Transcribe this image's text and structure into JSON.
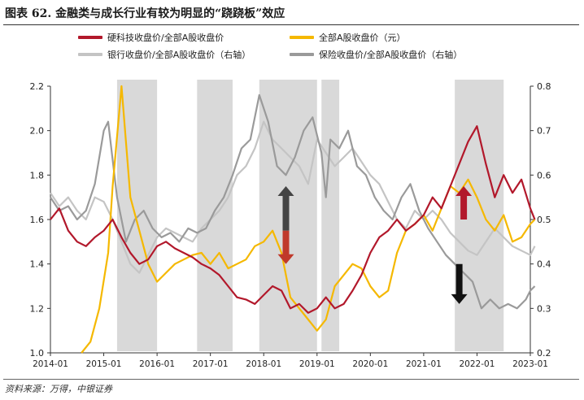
{
  "title": "图表 62. 金融类与成长行业有较为明显的“跷跷板”效应",
  "source": "资料来源：万得，中银证券",
  "chart_data": {
    "type": "line",
    "x_ticks": [
      "2014-01",
      "2015-01",
      "2016-01",
      "2017-01",
      "2018-01",
      "2019-01",
      "2020-01",
      "2021-01",
      "2022-01",
      "2023-01"
    ],
    "y_left": {
      "min": 1.0,
      "max": 2.2,
      "ticks": [
        "1.0",
        "1.2",
        "1.4",
        "1.6",
        "1.8",
        "2.0",
        "2.2"
      ]
    },
    "y_right": {
      "min": 0.2,
      "max": 0.8,
      "ticks": [
        "0.2",
        "0.3",
        "0.4",
        "0.5",
        "0.6",
        "0.7",
        "0.8"
      ]
    },
    "shaded_periods": [
      [
        "2015-04",
        "2016-01"
      ],
      [
        "2016-10",
        "2017-06"
      ],
      [
        "2017-12",
        "2019-01"
      ],
      [
        "2019-02",
        "2019-06"
      ],
      [
        "2021-08",
        "2022-07"
      ]
    ],
    "series": [
      {
        "name": "硬科技收盘价/全部A股收盘价",
        "color": "#b2182b",
        "axis": "left",
        "points": [
          [
            "2014-01",
            1.6
          ],
          [
            "2014-03",
            1.65
          ],
          [
            "2014-05",
            1.55
          ],
          [
            "2014-07",
            1.5
          ],
          [
            "2014-09",
            1.48
          ],
          [
            "2014-11",
            1.52
          ],
          [
            "2015-01",
            1.55
          ],
          [
            "2015-03",
            1.6
          ],
          [
            "2015-05",
            1.52
          ],
          [
            "2015-07",
            1.45
          ],
          [
            "2015-09",
            1.4
          ],
          [
            "2015-11",
            1.42
          ],
          [
            "2016-01",
            1.48
          ],
          [
            "2016-03",
            1.5
          ],
          [
            "2016-05",
            1.47
          ],
          [
            "2016-07",
            1.45
          ],
          [
            "2016-09",
            1.43
          ],
          [
            "2016-11",
            1.4
          ],
          [
            "2017-01",
            1.38
          ],
          [
            "2017-03",
            1.35
          ],
          [
            "2017-05",
            1.3
          ],
          [
            "2017-07",
            1.25
          ],
          [
            "2017-09",
            1.24
          ],
          [
            "2017-11",
            1.22
          ],
          [
            "2018-01",
            1.26
          ],
          [
            "2018-03",
            1.3
          ],
          [
            "2018-05",
            1.28
          ],
          [
            "2018-07",
            1.2
          ],
          [
            "2018-09",
            1.22
          ],
          [
            "2018-11",
            1.18
          ],
          [
            "2019-01",
            1.2
          ],
          [
            "2019-03",
            1.25
          ],
          [
            "2019-05",
            1.2
          ],
          [
            "2019-07",
            1.22
          ],
          [
            "2019-09",
            1.28
          ],
          [
            "2019-11",
            1.35
          ],
          [
            "2020-01",
            1.45
          ],
          [
            "2020-03",
            1.52
          ],
          [
            "2020-05",
            1.55
          ],
          [
            "2020-07",
            1.6
          ],
          [
            "2020-09",
            1.55
          ],
          [
            "2020-11",
            1.58
          ],
          [
            "2021-01",
            1.62
          ],
          [
            "2021-03",
            1.7
          ],
          [
            "2021-05",
            1.65
          ],
          [
            "2021-07",
            1.75
          ],
          [
            "2021-09",
            1.85
          ],
          [
            "2021-11",
            1.95
          ],
          [
            "2022-01",
            2.02
          ],
          [
            "2022-03",
            1.85
          ],
          [
            "2022-05",
            1.7
          ],
          [
            "2022-07",
            1.8
          ],
          [
            "2022-09",
            1.72
          ],
          [
            "2022-11",
            1.78
          ],
          [
            "2023-01",
            1.65
          ],
          [
            "2023-02",
            1.6
          ]
        ]
      },
      {
        "name": "全部A股收盘价（元）",
        "color": "#f5b800",
        "axis": "left",
        "points": [
          [
            "2014-08",
            1.0
          ],
          [
            "2014-10",
            1.05
          ],
          [
            "2014-12",
            1.2
          ],
          [
            "2015-02",
            1.45
          ],
          [
            "2015-03",
            1.75
          ],
          [
            "2015-05",
            2.2
          ],
          [
            "2015-07",
            1.7
          ],
          [
            "2015-09",
            1.55
          ],
          [
            "2015-11",
            1.4
          ],
          [
            "2016-01",
            1.32
          ],
          [
            "2016-03",
            1.36
          ],
          [
            "2016-05",
            1.4
          ],
          [
            "2016-07",
            1.42
          ],
          [
            "2016-09",
            1.44
          ],
          [
            "2016-11",
            1.45
          ],
          [
            "2017-01",
            1.4
          ],
          [
            "2017-03",
            1.45
          ],
          [
            "2017-05",
            1.38
          ],
          [
            "2017-07",
            1.4
          ],
          [
            "2017-09",
            1.42
          ],
          [
            "2017-11",
            1.48
          ],
          [
            "2018-01",
            1.5
          ],
          [
            "2018-03",
            1.55
          ],
          [
            "2018-05",
            1.45
          ],
          [
            "2018-07",
            1.25
          ],
          [
            "2018-09",
            1.2
          ],
          [
            "2018-11",
            1.15
          ],
          [
            "2019-01",
            1.1
          ],
          [
            "2019-03",
            1.15
          ],
          [
            "2019-05",
            1.3
          ],
          [
            "2019-07",
            1.35
          ],
          [
            "2019-09",
            1.4
          ],
          [
            "2019-11",
            1.38
          ],
          [
            "2020-01",
            1.3
          ],
          [
            "2020-03",
            1.25
          ],
          [
            "2020-05",
            1.28
          ],
          [
            "2020-07",
            1.45
          ],
          [
            "2020-09",
            1.55
          ],
          [
            "2020-11",
            1.58
          ],
          [
            "2021-01",
            1.62
          ],
          [
            "2021-03",
            1.55
          ],
          [
            "2021-05",
            1.65
          ],
          [
            "2021-07",
            1.75
          ],
          [
            "2021-09",
            1.72
          ],
          [
            "2021-11",
            1.78
          ],
          [
            "2022-01",
            1.7
          ],
          [
            "2022-03",
            1.6
          ],
          [
            "2022-05",
            1.55
          ],
          [
            "2022-07",
            1.62
          ],
          [
            "2022-09",
            1.5
          ],
          [
            "2022-11",
            1.52
          ],
          [
            "2023-01",
            1.58
          ],
          [
            "2023-02",
            1.6
          ]
        ]
      },
      {
        "name": "银行收盘价/全部A股收盘价（右轴）",
        "color": "#c4c4c4",
        "axis": "right",
        "points": [
          [
            "2014-01",
            0.56
          ],
          [
            "2014-03",
            0.53
          ],
          [
            "2014-05",
            0.55
          ],
          [
            "2014-07",
            0.52
          ],
          [
            "2014-09",
            0.5
          ],
          [
            "2014-11",
            0.55
          ],
          [
            "2015-01",
            0.54
          ],
          [
            "2015-03",
            0.5
          ],
          [
            "2015-05",
            0.45
          ],
          [
            "2015-07",
            0.4
          ],
          [
            "2015-09",
            0.38
          ],
          [
            "2015-11",
            0.42
          ],
          [
            "2016-01",
            0.46
          ],
          [
            "2016-03",
            0.48
          ],
          [
            "2016-05",
            0.47
          ],
          [
            "2016-07",
            0.46
          ],
          [
            "2016-09",
            0.45
          ],
          [
            "2016-11",
            0.48
          ],
          [
            "2017-01",
            0.5
          ],
          [
            "2017-03",
            0.52
          ],
          [
            "2017-05",
            0.55
          ],
          [
            "2017-07",
            0.6
          ],
          [
            "2017-09",
            0.62
          ],
          [
            "2017-11",
            0.66
          ],
          [
            "2018-01",
            0.72
          ],
          [
            "2018-03",
            0.68
          ],
          [
            "2018-05",
            0.66
          ],
          [
            "2018-07",
            0.64
          ],
          [
            "2018-09",
            0.62
          ],
          [
            "2018-11",
            0.58
          ],
          [
            "2019-01",
            0.68
          ],
          [
            "2019-03",
            0.65
          ],
          [
            "2019-05",
            0.62
          ],
          [
            "2019-07",
            0.64
          ],
          [
            "2019-09",
            0.66
          ],
          [
            "2019-11",
            0.63
          ],
          [
            "2020-01",
            0.6
          ],
          [
            "2020-03",
            0.58
          ],
          [
            "2020-05",
            0.54
          ],
          [
            "2020-07",
            0.5
          ],
          [
            "2020-09",
            0.48
          ],
          [
            "2020-11",
            0.52
          ],
          [
            "2021-01",
            0.5
          ],
          [
            "2021-03",
            0.52
          ],
          [
            "2021-05",
            0.5
          ],
          [
            "2021-07",
            0.47
          ],
          [
            "2021-09",
            0.45
          ],
          [
            "2021-11",
            0.43
          ],
          [
            "2022-01",
            0.42
          ],
          [
            "2022-03",
            0.45
          ],
          [
            "2022-05",
            0.48
          ],
          [
            "2022-07",
            0.46
          ],
          [
            "2022-09",
            0.44
          ],
          [
            "2022-11",
            0.43
          ],
          [
            "2023-01",
            0.42
          ],
          [
            "2023-02",
            0.44
          ]
        ]
      },
      {
        "name": "保险收盘价/全部A股收盘价（右轴）",
        "color": "#9a9a9a",
        "axis": "right",
        "points": [
          [
            "2014-01",
            0.55
          ],
          [
            "2014-03",
            0.52
          ],
          [
            "2014-05",
            0.53
          ],
          [
            "2014-07",
            0.5
          ],
          [
            "2014-09",
            0.52
          ],
          [
            "2014-11",
            0.58
          ],
          [
            "2015-01",
            0.7
          ],
          [
            "2015-02",
            0.72
          ],
          [
            "2015-04",
            0.55
          ],
          [
            "2015-06",
            0.45
          ],
          [
            "2015-08",
            0.5
          ],
          [
            "2015-10",
            0.52
          ],
          [
            "2015-12",
            0.48
          ],
          [
            "2016-02",
            0.46
          ],
          [
            "2016-04",
            0.47
          ],
          [
            "2016-06",
            0.45
          ],
          [
            "2016-08",
            0.48
          ],
          [
            "2016-10",
            0.47
          ],
          [
            "2016-12",
            0.48
          ],
          [
            "2017-02",
            0.52
          ],
          [
            "2017-04",
            0.55
          ],
          [
            "2017-06",
            0.6
          ],
          [
            "2017-08",
            0.66
          ],
          [
            "2017-10",
            0.68
          ],
          [
            "2017-12",
            0.78
          ],
          [
            "2018-02",
            0.72
          ],
          [
            "2018-04",
            0.62
          ],
          [
            "2018-06",
            0.6
          ],
          [
            "2018-08",
            0.64
          ],
          [
            "2018-10",
            0.7
          ],
          [
            "2018-12",
            0.73
          ],
          [
            "2019-02",
            0.65
          ],
          [
            "2019-03",
            0.55
          ],
          [
            "2019-04",
            0.68
          ],
          [
            "2019-06",
            0.66
          ],
          [
            "2019-08",
            0.7
          ],
          [
            "2019-10",
            0.62
          ],
          [
            "2019-12",
            0.6
          ],
          [
            "2020-02",
            0.55
          ],
          [
            "2020-04",
            0.52
          ],
          [
            "2020-06",
            0.5
          ],
          [
            "2020-08",
            0.55
          ],
          [
            "2020-10",
            0.58
          ],
          [
            "2020-12",
            0.52
          ],
          [
            "2021-02",
            0.48
          ],
          [
            "2021-04",
            0.45
          ],
          [
            "2021-06",
            0.42
          ],
          [
            "2021-08",
            0.4
          ],
          [
            "2021-10",
            0.38
          ],
          [
            "2021-12",
            0.36
          ],
          [
            "2022-02",
            0.3
          ],
          [
            "2022-04",
            0.32
          ],
          [
            "2022-06",
            0.3
          ],
          [
            "2022-08",
            0.31
          ],
          [
            "2022-10",
            0.3
          ],
          [
            "2022-12",
            0.32
          ],
          [
            "2023-01",
            0.34
          ],
          [
            "2023-02",
            0.35
          ]
        ]
      }
    ],
    "annotations": [
      {
        "type": "arrow",
        "direction": "up",
        "color": "#444444",
        "x": "2018-06",
        "y_axis": "left",
        "y_from": 1.55,
        "y_to": 1.75
      },
      {
        "type": "arrow",
        "direction": "down",
        "color": "#c0392b",
        "x": "2018-06",
        "y_axis": "left",
        "y_from": 1.55,
        "y_to": 1.4
      },
      {
        "type": "arrow",
        "direction": "up",
        "color": "#b2182b",
        "x": "2021-10",
        "y_axis": "left",
        "y_from": 1.6,
        "y_to": 1.75
      },
      {
        "type": "arrow",
        "direction": "down",
        "color": "#111111",
        "x": "2021-09",
        "y_axis": "left",
        "y_from": 1.4,
        "y_to": 1.22
      }
    ]
  }
}
